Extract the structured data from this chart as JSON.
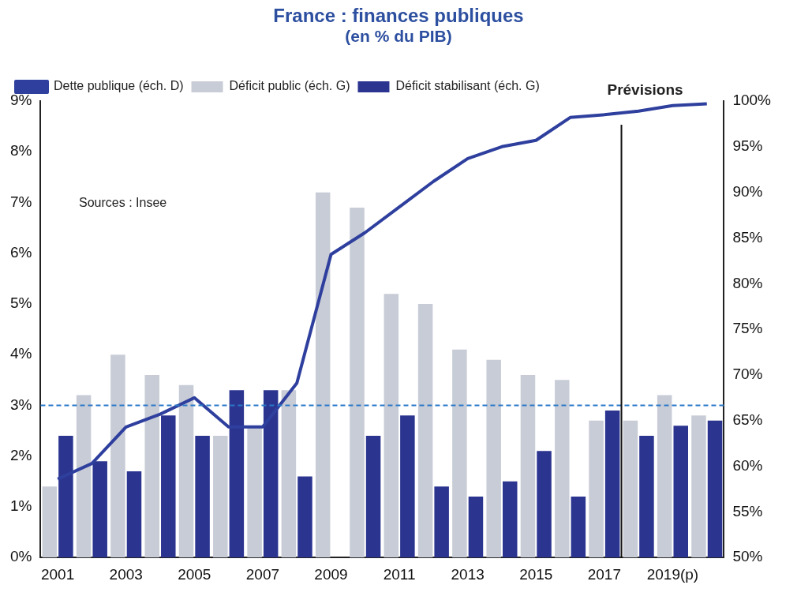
{
  "chart_data": {
    "type": "bar",
    "title": "France : finances publiques",
    "subtitle": "(en % du PIB)",
    "categories": [
      "2001",
      null,
      "2003",
      null,
      "2005",
      null,
      "2007",
      null,
      "2009",
      null,
      "2011",
      null,
      "2013",
      null,
      "2015",
      null,
      "2017",
      null,
      "2019(p)",
      null
    ],
    "series": [
      {
        "name": "Déficit public (éch. G)",
        "color": "#c8ccd6",
        "values": [
          1.4,
          3.2,
          4.0,
          3.6,
          3.4,
          2.4,
          2.6,
          3.3,
          7.2,
          6.9,
          5.2,
          5.0,
          4.1,
          3.9,
          3.6,
          3.5,
          2.7,
          2.7,
          3.2,
          2.8
        ]
      },
      {
        "name": "Déficit stabilisant (éch. G)",
        "color": "#2b3590",
        "values": [
          2.4,
          1.9,
          1.7,
          2.8,
          2.4,
          3.3,
          3.3,
          1.6,
          null,
          2.4,
          2.8,
          1.4,
          1.2,
          1.5,
          2.1,
          1.2,
          2.9,
          2.4,
          2.6,
          2.7
        ]
      },
      {
        "name": "Dette publique (éch. D)",
        "type": "line",
        "axis": "y2",
        "color": "#2e3f9e",
        "values": [
          58.6,
          60.3,
          64.3,
          65.7,
          67.5,
          64.3,
          64.3,
          69.1,
          83.2,
          85.6,
          88.4,
          91.2,
          93.7,
          95.0,
          95.7,
          98.2,
          98.5,
          98.9,
          99.5,
          99.7
        ]
      }
    ],
    "ylim": [
      0,
      9
    ],
    "yticks": [
      {
        "value": 0,
        "label": "0%"
      },
      {
        "value": 1,
        "label": "1%"
      },
      {
        "value": 2,
        "label": "2%"
      },
      {
        "value": 3,
        "label": "3%"
      },
      {
        "value": 4,
        "label": "4%"
      },
      {
        "value": 5,
        "label": "5%"
      },
      {
        "value": 6,
        "label": "6%"
      },
      {
        "value": 7,
        "label": "7%"
      },
      {
        "value": 8,
        "label": "8%"
      },
      {
        "value": 9,
        "label": "9%"
      }
    ],
    "y2lim": [
      50,
      100
    ],
    "y2ticks": [
      {
        "value": 50,
        "label": "50%"
      },
      {
        "value": 55,
        "label": "55%"
      },
      {
        "value": 60,
        "label": "60%"
      },
      {
        "value": 65,
        "label": "65%"
      },
      {
        "value": 70,
        "label": "70%"
      },
      {
        "value": 75,
        "label": "75%"
      },
      {
        "value": 80,
        "label": "80%"
      },
      {
        "value": 85,
        "label": "85%"
      },
      {
        "value": 90,
        "label": "90%"
      },
      {
        "value": 95,
        "label": "95%"
      },
      {
        "value": 100,
        "label": "100%"
      }
    ],
    "ref_lines": [
      {
        "axis": "y",
        "value": 3,
        "color": "#2a78c8",
        "line_style": "dashed"
      },
      {
        "axis": "x",
        "value": "2017",
        "label": "Prévisions",
        "color": "#111111",
        "line_style": "solid"
      }
    ],
    "annotations": [
      "Sources : Insee"
    ],
    "legend": "top left",
    "grid": false,
    "marker": "none"
  }
}
